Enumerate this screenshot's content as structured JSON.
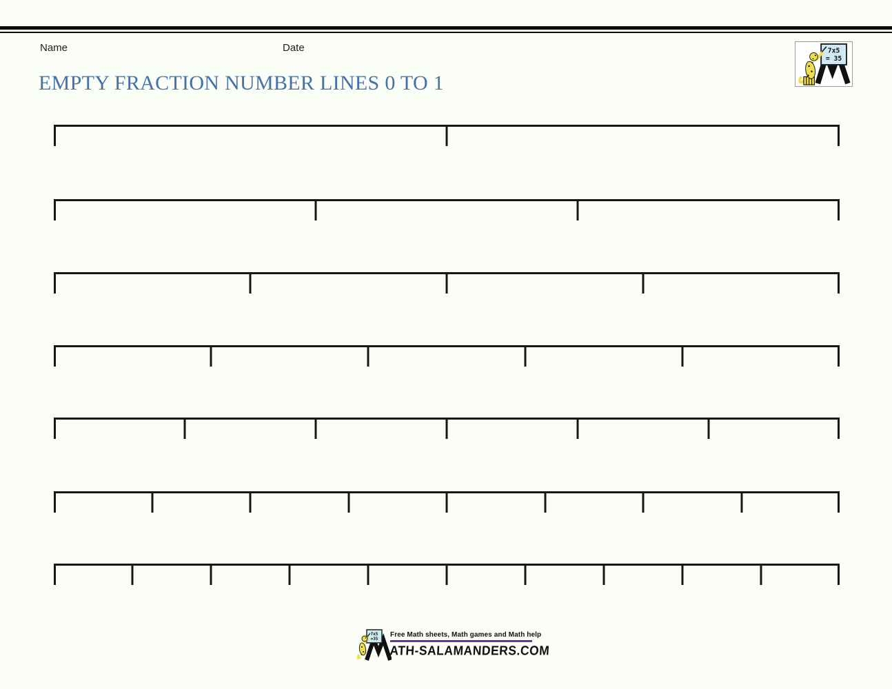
{
  "page": {
    "background": "#fbfdf7",
    "top_rule_color": "#0a0a0a"
  },
  "header": {
    "name_label": "Name",
    "date_label": "Date"
  },
  "title": {
    "text": "EMPTY FRACTION NUMBER LINES 0 TO 1",
    "color": "#4472a8"
  },
  "logo": {
    "board_line1": "7x5",
    "board_line2": "= 35",
    "board_color": "#cfeaf3",
    "salamander_color": "#f0df4a",
    "m_color": "#111111"
  },
  "number_lines": {
    "range_start": "0",
    "range_end": "1",
    "segments": [
      2,
      3,
      4,
      5,
      6,
      8,
      10
    ],
    "line_color": "#161616"
  },
  "footer": {
    "tagline": "Free Math sheets, Math games and Math help",
    "rule_color": "#7030a0",
    "wordmark_full": "MATH-SALAMANDERS.COM",
    "wordmark_after_m": "ATH-SALAMANDERS.COM",
    "board_line1": "7x5",
    "board_line2": "=35"
  }
}
